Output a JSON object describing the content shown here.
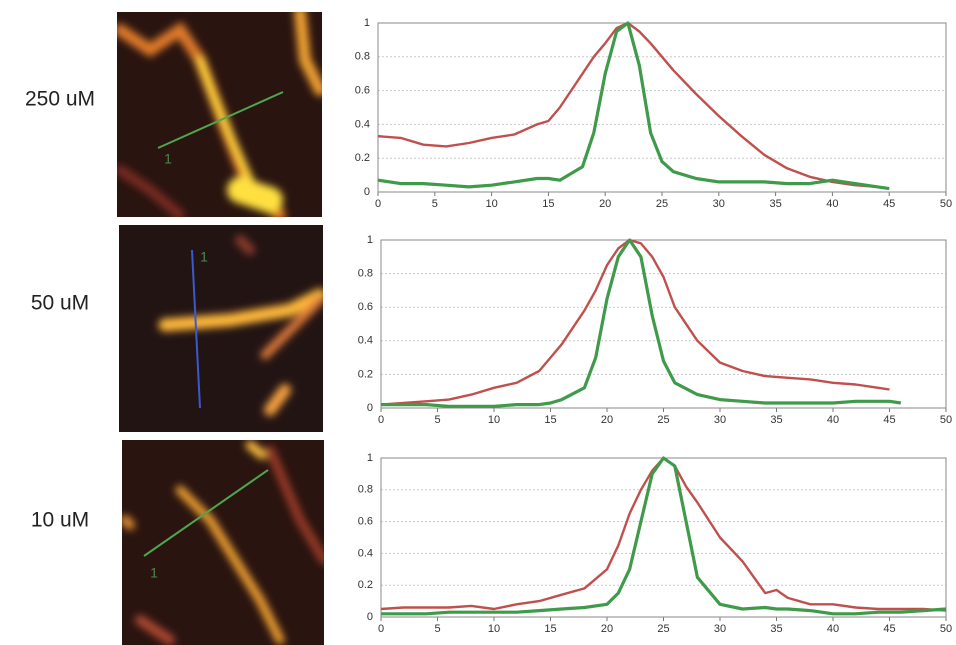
{
  "chart_data": [
    {
      "type": "line",
      "title": "250 uM",
      "annotation": "1",
      "x": [
        0,
        2,
        4,
        6,
        8,
        10,
        12,
        14,
        15,
        16,
        18,
        19,
        20,
        21,
        22,
        23,
        24,
        25,
        26,
        28,
        30,
        32,
        34,
        36,
        38,
        40,
        42,
        44,
        45
      ],
      "series": [
        {
          "color": "#c0504d",
          "values": [
            0.33,
            0.32,
            0.28,
            0.27,
            0.29,
            0.32,
            0.34,
            0.4,
            0.42,
            0.5,
            0.7,
            0.8,
            0.88,
            0.97,
            1,
            0.95,
            0.88,
            0.8,
            0.72,
            0.58,
            0.45,
            0.33,
            0.22,
            0.14,
            0.09,
            0.06,
            0.04,
            0.03,
            0.02
          ]
        },
        {
          "color": "#3f9a4a",
          "values": [
            0.07,
            0.05,
            0.05,
            0.04,
            0.03,
            0.04,
            0.06,
            0.08,
            0.08,
            0.07,
            0.15,
            0.35,
            0.7,
            0.95,
            1,
            0.75,
            0.35,
            0.18,
            0.12,
            0.08,
            0.06,
            0.06,
            0.06,
            0.05,
            0.05,
            0.07,
            0.05,
            0.03,
            0.02
          ]
        }
      ],
      "xlim": [
        0,
        50
      ],
      "xticks": [
        0,
        5,
        10,
        15,
        20,
        25,
        30,
        35,
        40,
        45,
        50
      ],
      "ylim": [
        0,
        1
      ],
      "yticks": [
        0,
        0.2,
        0.4,
        0.6,
        0.8,
        1
      ],
      "grid": true
    },
    {
      "type": "line",
      "title": "50 uM",
      "annotation": "1",
      "x": [
        0,
        2,
        4,
        6,
        8,
        10,
        12,
        14,
        15,
        16,
        18,
        19,
        20,
        21,
        22,
        23,
        24,
        25,
        26,
        28,
        30,
        32,
        34,
        36,
        38,
        40,
        42,
        44,
        45,
        46
      ],
      "series": [
        {
          "color": "#c0504d",
          "values": [
            0.02,
            0.03,
            0.04,
            0.05,
            0.08,
            0.12,
            0.15,
            0.22,
            0.3,
            0.38,
            0.58,
            0.7,
            0.85,
            0.95,
            1,
            0.98,
            0.9,
            0.78,
            0.6,
            0.4,
            0.27,
            0.22,
            0.19,
            0.18,
            0.17,
            0.15,
            0.14,
            0.12,
            0.11,
            null
          ]
        },
        {
          "color": "#3f9a4a",
          "values": [
            0.02,
            0.02,
            0.02,
            0.01,
            0.01,
            0.01,
            0.02,
            0.02,
            0.03,
            0.05,
            0.12,
            0.3,
            0.65,
            0.9,
            1,
            0.9,
            0.55,
            0.28,
            0.15,
            0.08,
            0.05,
            0.04,
            0.03,
            0.03,
            0.03,
            0.03,
            0.04,
            0.04,
            0.04,
            0.03
          ]
        }
      ],
      "xlim": [
        0,
        50
      ],
      "xticks": [
        0,
        5,
        10,
        15,
        20,
        25,
        30,
        35,
        40,
        45,
        50
      ],
      "ylim": [
        0,
        1
      ],
      "yticks": [
        0,
        0.2,
        0.4,
        0.6,
        0.8,
        1
      ],
      "grid": true
    },
    {
      "type": "line",
      "title": "10 uM",
      "annotation": "1",
      "x": [
        0,
        2,
        4,
        6,
        8,
        10,
        12,
        14,
        16,
        18,
        20,
        21,
        22,
        23,
        24,
        25,
        26,
        27,
        28,
        30,
        32,
        34,
        35,
        36,
        38,
        40,
        42,
        44,
        46,
        48,
        50
      ],
      "series": [
        {
          "color": "#c0504d",
          "values": [
            0.05,
            0.06,
            0.06,
            0.06,
            0.07,
            0.05,
            0.08,
            0.1,
            0.14,
            0.18,
            0.3,
            0.45,
            0.65,
            0.8,
            0.92,
            1,
            0.95,
            0.82,
            0.72,
            0.5,
            0.35,
            0.15,
            0.17,
            0.12,
            0.08,
            0.08,
            0.06,
            0.05,
            0.05,
            0.05,
            0.04
          ]
        },
        {
          "color": "#3f9a4a",
          "values": [
            0.02,
            0.02,
            0.02,
            0.03,
            0.03,
            0.03,
            0.03,
            0.04,
            0.05,
            0.06,
            0.08,
            0.15,
            0.3,
            0.6,
            0.9,
            1,
            0.95,
            0.6,
            0.25,
            0.08,
            0.05,
            0.06,
            0.05,
            0.05,
            0.04,
            0.02,
            0.02,
            0.03,
            0.03,
            0.04,
            0.05
          ]
        }
      ],
      "xlim": [
        0,
        50
      ],
      "xticks": [
        0,
        5,
        10,
        15,
        20,
        25,
        30,
        35,
        40,
        45,
        50
      ],
      "ylim": [
        0,
        1
      ],
      "yticks": [
        0,
        0.2,
        0.4,
        0.6,
        0.8,
        1
      ],
      "grid": true
    }
  ]
}
